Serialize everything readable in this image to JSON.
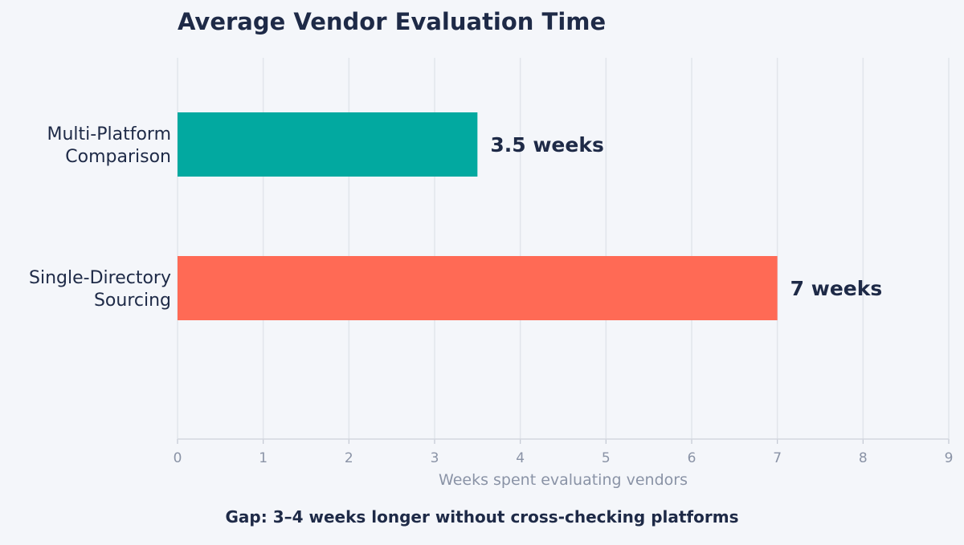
{
  "chart_data": {
    "type": "bar",
    "orientation": "horizontal",
    "title": "Average Vendor Evaluation Time",
    "xlabel": "Weeks spent evaluating vendors",
    "ylabel": "",
    "xlim": [
      0,
      9
    ],
    "x_ticks": [
      "0",
      "1",
      "2",
      "3",
      "4",
      "5",
      "6",
      "7",
      "8",
      "9"
    ],
    "grid": true,
    "legend": "none",
    "categories": [
      [
        "Multi-Platform",
        "Comparison"
      ],
      [
        "Single-Directory",
        "Sourcing"
      ]
    ],
    "values": [
      3.5,
      7
    ],
    "value_labels": [
      "3.5 weeks",
      "7 weeks"
    ],
    "colors": [
      "#02a9a0",
      "#ff6a55"
    ],
    "annotation": "Gap: 3–4 weeks longer without cross-checking platforms"
  },
  "colors": {
    "text_dark": "#1e2a47",
    "text_muted": "#8a93a6",
    "background": "#f4f6fa"
  }
}
